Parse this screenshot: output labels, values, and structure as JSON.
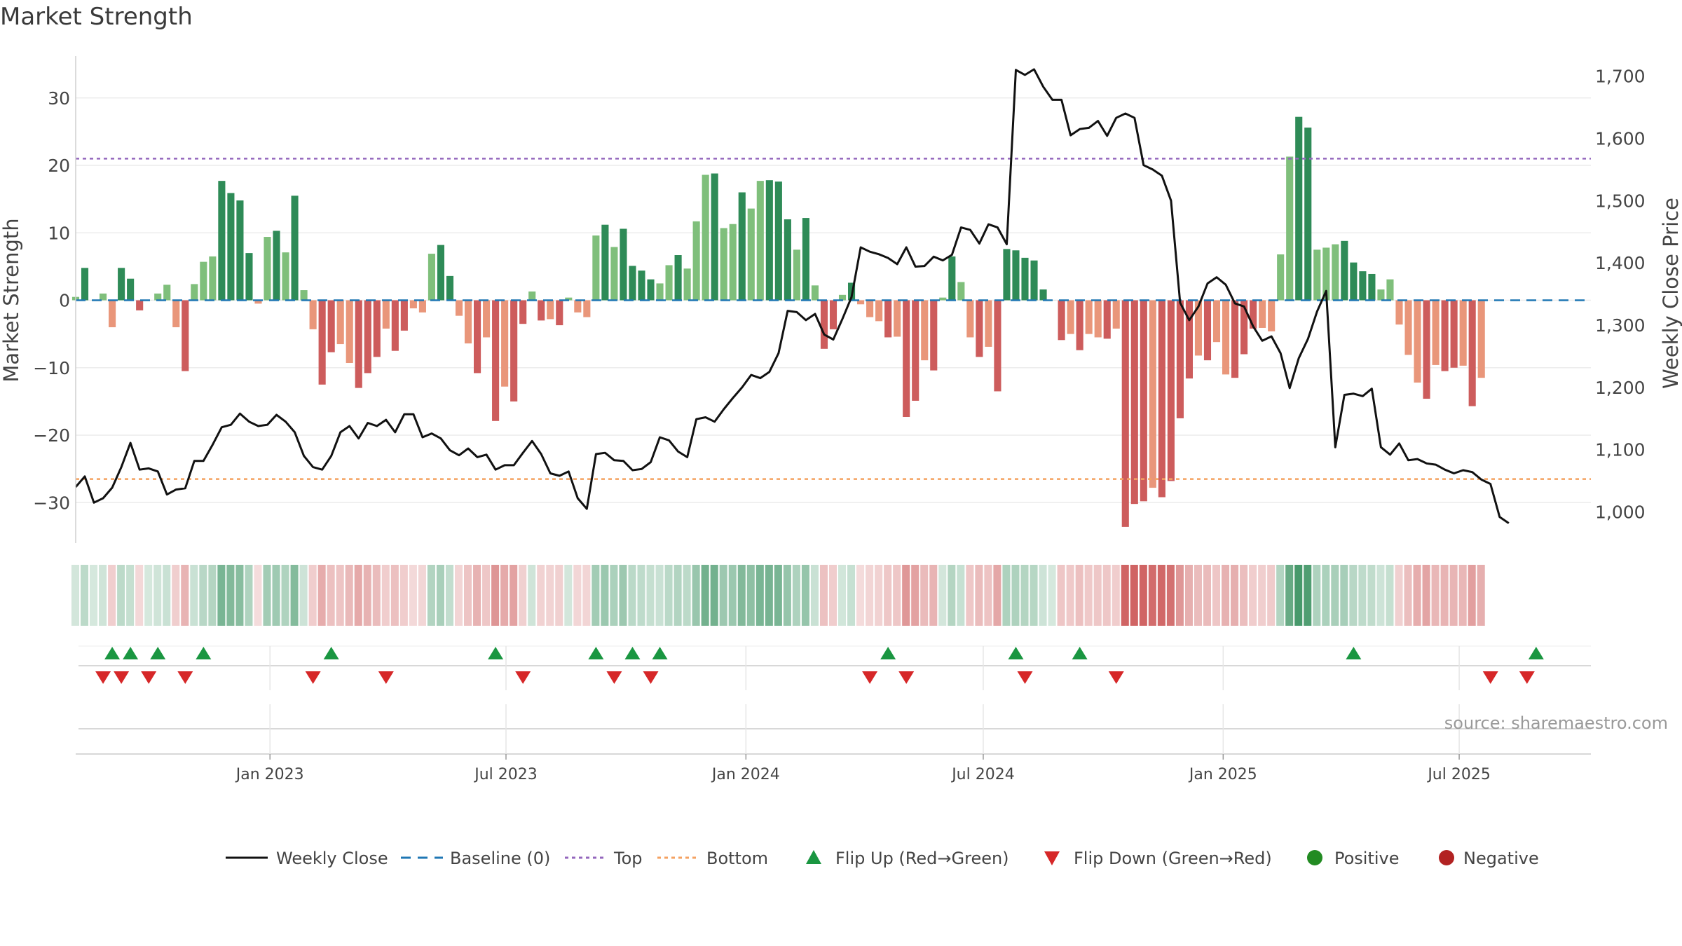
{
  "title": "Market Strength",
  "source_label": "source: sharemaestro.com",
  "colors": {
    "green_strong": "#2e8b57",
    "green_light": "#7fbf7b",
    "red_strong": "#cd5c5c",
    "red_light": "#e9967a",
    "price_line": "#111111",
    "baseline": "#1f77b4",
    "top_line": "#9467bd",
    "bottom_line": "#f4a261",
    "flip_up": "#1a9641",
    "flip_down": "#d62728",
    "positive": "#228b22",
    "negative": "#b22222",
    "grid": "#ececec"
  },
  "chart_data": {
    "type": "bar",
    "title": "Market Strength",
    "ylabel": "Market Strength",
    "y2label": "Weekly Close Price",
    "ylim": [
      -36,
      36
    ],
    "y2lim": [
      950,
      1730
    ],
    "y_ticks": [
      30,
      20,
      10,
      0,
      -10,
      -20,
      -30
    ],
    "y2_ticks": [
      1700,
      1600,
      1500,
      1400,
      1300,
      1200,
      1100,
      1000
    ],
    "y_tick_labels": [
      "30",
      "20",
      "10",
      "0",
      "−10",
      "−20",
      "−30"
    ],
    "y2_tick_labels": [
      "1,700",
      "1,600",
      "1,500",
      "1,400",
      "1,300",
      "1,200",
      "1,100",
      "1,000"
    ],
    "x_start": "2022-08-05",
    "x_end": "2025-10-10",
    "x_ticks": [
      "2023-01-01",
      "2023-07-01",
      "2024-01-01",
      "2024-07-01",
      "2025-01-01",
      "2025-07-01"
    ],
    "x_tick_labels": [
      "Jan 2023",
      "Jul 2023",
      "Jan 2024",
      "Jul 2024",
      "Jan 2025",
      "Jul 2025"
    ],
    "top_threshold": 21,
    "bottom_threshold": -26.5,
    "baseline": 0,
    "strength": [
      0.5,
      4.8,
      0,
      1,
      -4,
      4.8,
      3.2,
      -1.5,
      0,
      1,
      2.3,
      -4,
      -10.5,
      2.4,
      5.7,
      6.5,
      17.7,
      15.9,
      14.8,
      7,
      -0.5,
      9.4,
      10.3,
      7.1,
      15.5,
      1.5,
      -4.3,
      -12.5,
      -7.7,
      -6.5,
      -9.3,
      -13,
      -10.8,
      -8.4,
      -4.2,
      -7.5,
      -4.5,
      -1.2,
      -1.8,
      6.9,
      8.2,
      3.6,
      -2.3,
      -6.4,
      -10.8,
      -5.5,
      -17.9,
      -12.8,
      -15,
      -3.5,
      1.3,
      -3,
      -2.8,
      -3.7,
      0.4,
      -1.8,
      -2.5,
      9.6,
      11.2,
      7.9,
      10.6,
      5.1,
      4.4,
      3.1,
      2.5,
      5.2,
      6.7,
      4.7,
      11.7,
      18.6,
      18.8,
      10.7,
      11.3,
      16,
      13.6,
      17.7,
      17.8,
      17.6,
      12,
      7.5,
      12.2,
      2.2,
      -7.2,
      -4.3,
      0.8,
      2.6,
      -0.6,
      -2.5,
      -3.1,
      -5.5,
      -5.4,
      -17.3,
      -14.9,
      -8.9,
      -10.4,
      0.4,
      6.5,
      2.7,
      -5.5,
      -8.4,
      -6.9,
      -13.5,
      7.6,
      7.4,
      6.3,
      5.9,
      1.6,
      0,
      -5.9,
      -5,
      -7.4,
      -5,
      -5.5,
      -5.7,
      -4.2,
      -33.6,
      -30.2,
      -29.8,
      -27.8,
      -29.2,
      -26.8,
      -17.5,
      -11.6,
      -8.2,
      -8.9,
      -6.2,
      -11,
      -11.5,
      -8,
      -4.2,
      -4.1,
      -4.6,
      6.8,
      21.3,
      27.2,
      25.6,
      7.5,
      7.8,
      8.3,
      8.8,
      5.6,
      4.3,
      3.9,
      1.6,
      3.1,
      -3.6,
      -8.1,
      -12.2,
      -14.6,
      -9.6,
      -10.5,
      -10,
      -9.7,
      -15.7,
      -11.5
    ],
    "strength_series_name": "Market Strength",
    "weekly_close_name": "Weekly Close",
    "weekly_close": [
      1040,
      1057,
      1015,
      1022,
      1039,
      1072,
      1111,
      1068,
      1070,
      1065,
      1028,
      1036,
      1038,
      1082,
      1082,
      1108,
      1136,
      1140,
      1158,
      1145,
      1138,
      1140,
      1156,
      1145,
      1128,
      1090,
      1072,
      1068,
      1090,
      1128,
      1138,
      1118,
      1143,
      1138,
      1148,
      1128,
      1157,
      1157,
      1120,
      1126,
      1118,
      1099,
      1091,
      1102,
      1088,
      1092,
      1068,
      1075,
      1075,
      1095,
      1114,
      1093,
      1062,
      1058,
      1065,
      1022,
      1005,
      1093,
      1095,
      1083,
      1082,
      1067,
      1069,
      1080,
      1120,
      1115,
      1097,
      1088,
      1149,
      1152,
      1145,
      1165,
      1183,
      1200,
      1220,
      1215,
      1225,
      1255,
      1323,
      1321,
      1308,
      1318,
      1285,
      1277,
      1310,
      1345,
      1425,
      1418,
      1414,
      1408,
      1398,
      1425,
      1394,
      1395,
      1410,
      1404,
      1413,
      1457,
      1453,
      1431,
      1462,
      1457,
      1430,
      1710,
      1702,
      1711,
      1683,
      1662,
      1662,
      1605,
      1615,
      1617,
      1628,
      1604,
      1633,
      1640,
      1633,
      1557,
      1550,
      1540,
      1500,
      1336,
      1308,
      1330,
      1367,
      1377,
      1365,
      1335,
      1330,
      1298,
      1275,
      1282,
      1255,
      1199,
      1247,
      1278,
      1322,
      1355,
      1104,
      1188,
      1190,
      1186,
      1198,
      1104,
      1092,
      1110,
      1083,
      1085,
      1078,
      1076,
      1068,
      1062,
      1067,
      1064,
      1052,
      1045,
      992,
      982
    ],
    "flip_up": [
      "2022-09-02",
      "2022-09-16",
      "2022-10-07",
      "2022-11-11",
      "2023-02-17",
      "2023-06-23",
      "2023-09-08",
      "2023-10-06",
      "2023-10-27",
      "2024-04-19",
      "2024-07-26",
      "2024-09-13",
      "2025-04-11",
      "2025-08-29"
    ],
    "flip_down": [
      "2022-08-26",
      "2022-09-09",
      "2022-09-30",
      "2022-10-28",
      "2023-02-03",
      "2023-03-31",
      "2023-07-14",
      "2023-09-22",
      "2023-10-20",
      "2024-04-05",
      "2024-05-03",
      "2024-08-02",
      "2024-10-11",
      "2025-07-25",
      "2025-08-22"
    ],
    "legend": [
      {
        "label": "Weekly Close",
        "kind": "line"
      },
      {
        "label": "Baseline (0)",
        "kind": "dash"
      },
      {
        "label": "Top",
        "kind": "dot-purple"
      },
      {
        "label": "Bottom",
        "kind": "dot-orange"
      },
      {
        "label": "Flip Up (Red→Green)",
        "kind": "tri-up"
      },
      {
        "label": "Flip Down (Green→Red)",
        "kind": "tri-down"
      },
      {
        "label": "Positive",
        "kind": "circle-green"
      },
      {
        "label": "Negative",
        "kind": "circle-red"
      }
    ]
  }
}
